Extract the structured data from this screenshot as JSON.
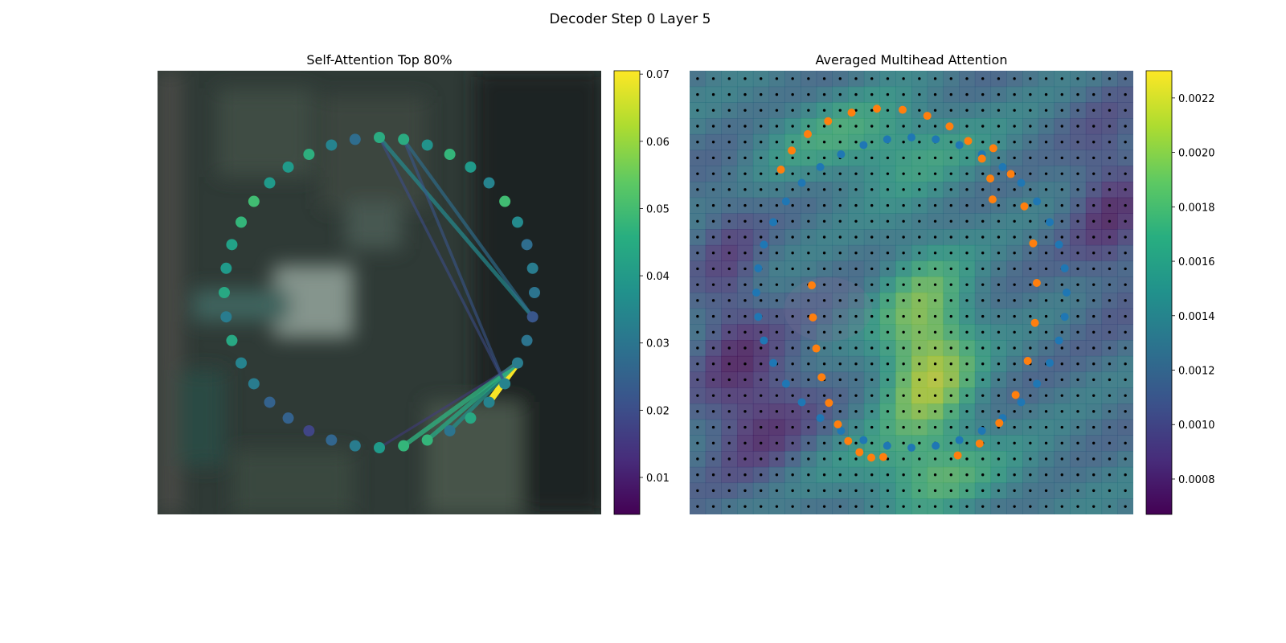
{
  "figure": {
    "suptitle": "Decoder Step 0 Layer 5"
  },
  "colors": {
    "nodes_left": "#2c6e8a",
    "points_blue": "#1f77b4",
    "points_orange": "#ff7f0e",
    "grid_dots": "#000000",
    "colormap": "viridis"
  },
  "chart_data": [
    {
      "type": "scatter",
      "title": "Self-Attention Top 80%",
      "colorbar": {
        "label": "",
        "range": [
          0.0045,
          0.0705
        ],
        "ticks": [
          "0.01",
          "0.02",
          "0.03",
          "0.04",
          "0.05",
          "0.06",
          "0.07"
        ],
        "tick_values": [
          0.01,
          0.02,
          0.03,
          0.04,
          0.05,
          0.06,
          0.07
        ]
      },
      "axes": {
        "visible": false,
        "background": "blurred camera image"
      },
      "node_count": 40,
      "node_values": [
        0.045,
        0.045,
        0.038,
        0.048,
        0.04,
        0.034,
        0.05,
        0.036,
        0.028,
        0.032,
        0.03,
        0.022,
        0.03,
        0.032,
        0.034,
        0.034,
        0.044,
        0.03,
        0.048,
        0.048,
        0.04,
        0.032,
        0.026,
        0.018,
        0.025,
        0.025,
        0.032,
        0.034,
        0.044,
        0.032,
        0.044,
        0.04,
        0.042,
        0.048,
        0.05,
        0.04,
        0.04,
        0.046,
        0.034,
        0.028
      ],
      "edges": [
        {
          "from": 13,
          "to": 15,
          "value": 0.07
        },
        {
          "from": 13,
          "to": 17,
          "value": 0.038
        },
        {
          "from": 13,
          "to": 18,
          "value": 0.044
        },
        {
          "from": 13,
          "to": 19,
          "value": 0.046
        },
        {
          "from": 13,
          "to": 20,
          "value": 0.016
        },
        {
          "from": 11,
          "to": 0,
          "value": 0.036
        },
        {
          "from": 11,
          "to": 1,
          "value": 0.028
        },
        {
          "from": 14,
          "to": 1,
          "value": 0.022
        },
        {
          "from": 14,
          "to": 0,
          "value": 0.02
        }
      ]
    },
    {
      "type": "heatmap",
      "title": "Averaged Multihead Attention",
      "colorbar": {
        "label": "",
        "range": [
          0.00067,
          0.0023
        ],
        "ticks": [
          "0.0008",
          "0.0010",
          "0.0012",
          "0.0014",
          "0.0016",
          "0.0018",
          "0.0020",
          "0.0022"
        ],
        "tick_values": [
          0.0008,
          0.001,
          0.0012,
          0.0014,
          0.0016,
          0.0018,
          0.002,
          0.0022
        ]
      },
      "axes": {
        "visible": false
      },
      "grid": {
        "rows": 28,
        "cols": 28,
        "peak": [
          17.5,
          14.5
        ],
        "low": [
          21,
          4
        ]
      },
      "reference_points_blue": {
        "count": 40,
        "center": [
          24,
          17.5
        ],
        "radius": [
          19.5,
          20.5
        ]
      },
      "sampling_points_orange": {
        "count": 34,
        "shape": "crescent"
      }
    }
  ]
}
